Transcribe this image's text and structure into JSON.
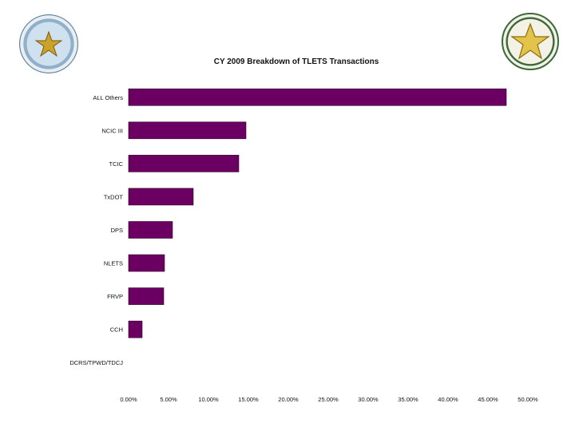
{
  "chart_data": {
    "type": "bar",
    "orientation": "horizontal",
    "title": "CY 2009 Breakdown of TLETS Transactions",
    "categories": [
      "ALL Others",
      "NCIC III",
      "TCIC",
      "TxDOT",
      "DPS",
      "NLETS",
      "FRVP",
      "CCH",
      "DCRS/TPWD/TDCJ"
    ],
    "values": [
      47.3,
      14.7,
      13.8,
      8.1,
      5.5,
      4.5,
      4.4,
      1.7,
      0.0
    ],
    "xlim": [
      0,
      50
    ],
    "x_ticks": [
      "0.00%",
      "5.00%",
      "10.00%",
      "15.00%",
      "20.00%",
      "25.00%",
      "30.00%",
      "35.00%",
      "40.00%",
      "45.00%",
      "50.00%"
    ],
    "xlabel": "",
    "ylabel": "",
    "bar_color": "#6b0062",
    "grid": false
  },
  "logos": {
    "left_seal": "seal-of-texas-icon",
    "right_seal": "texas-dps-seal-icon"
  }
}
